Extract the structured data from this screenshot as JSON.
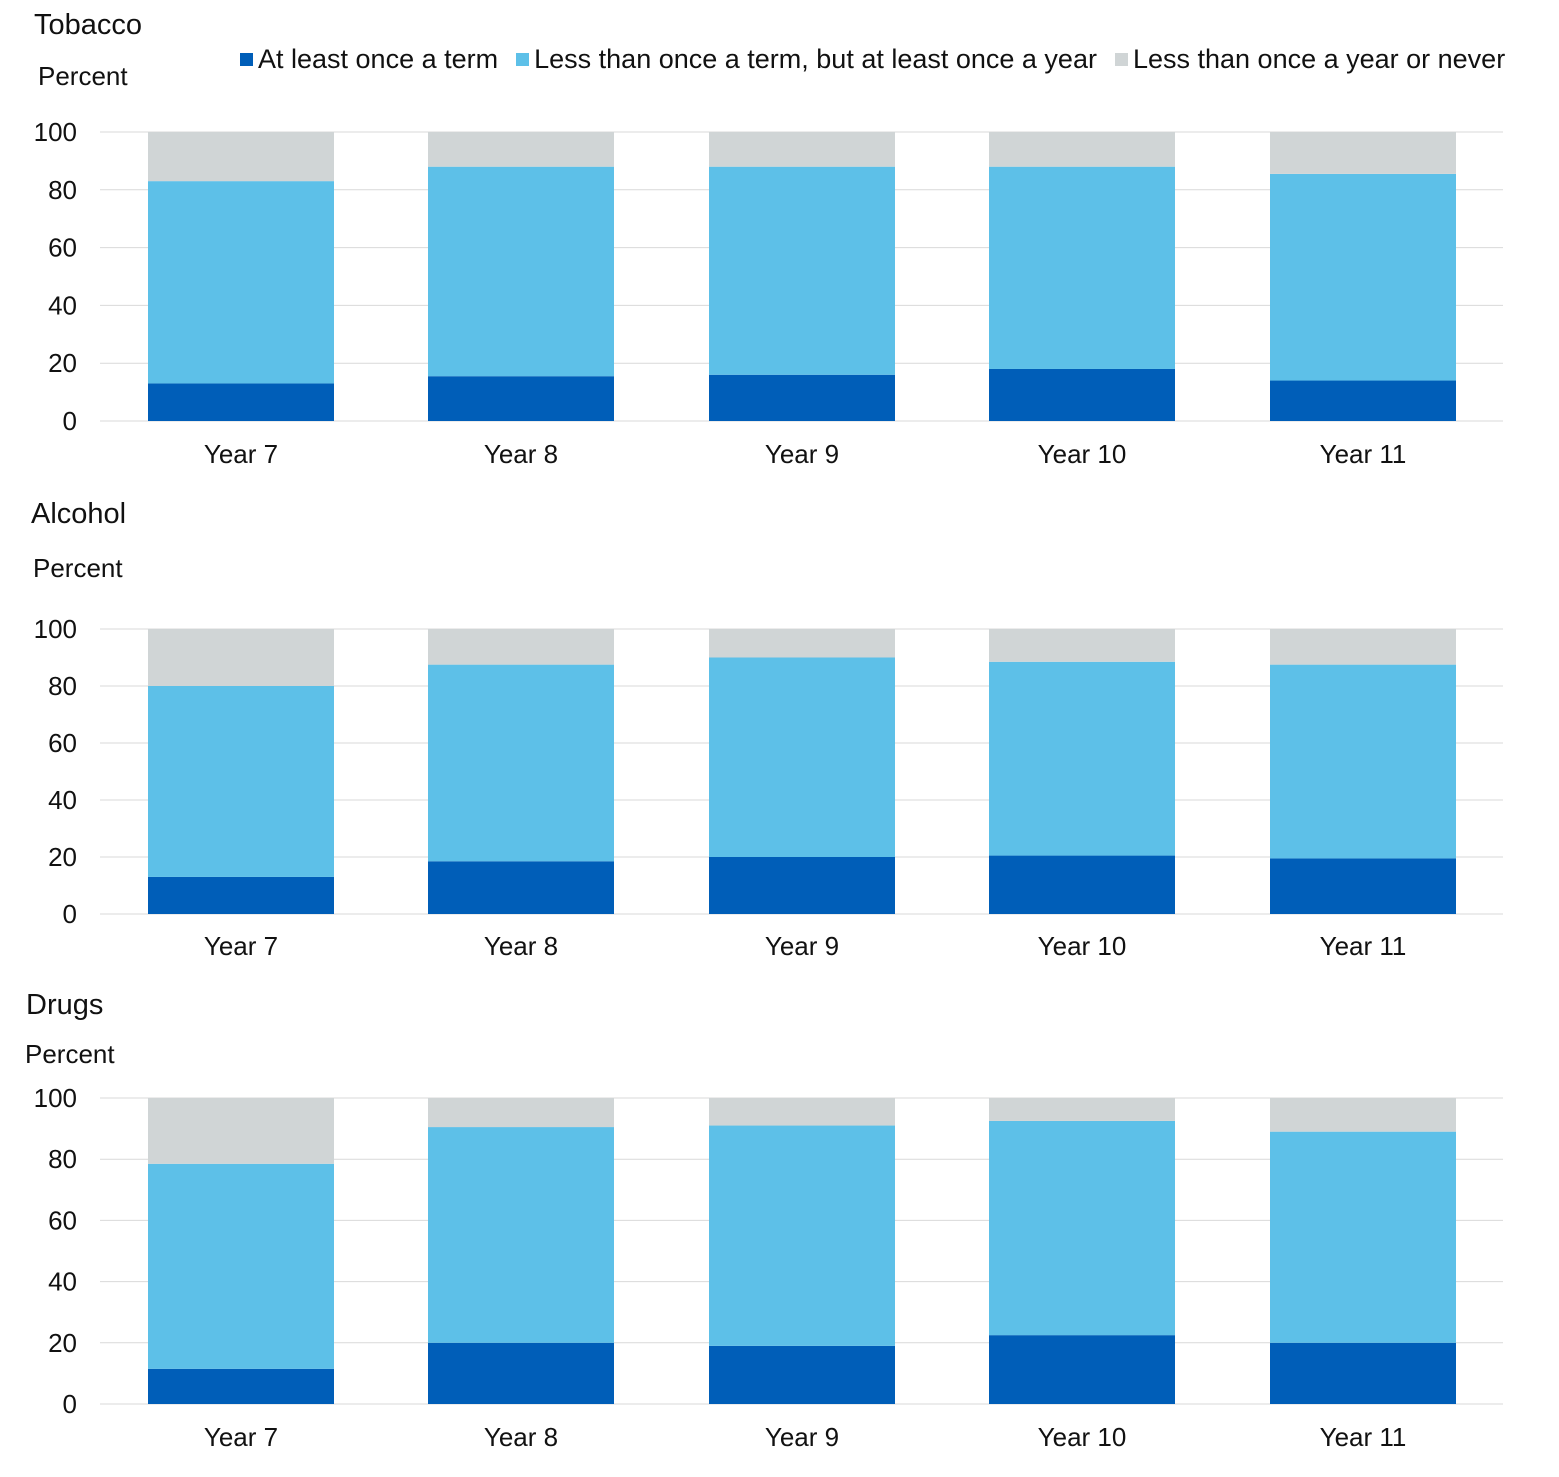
{
  "legend": {
    "items": [
      {
        "label": "At least once a term",
        "color": "#005EB8"
      },
      {
        "label": "Less than once a term, but at least once a year",
        "color": "#5DC0E8"
      },
      {
        "label": "Less than once a year or never",
        "color": "#D0D5D6"
      }
    ]
  },
  "chart_data": [
    {
      "type": "bar",
      "stacked": true,
      "title": "Tobacco",
      "ylabel": "Percent",
      "ylim": [
        0,
        100
      ],
      "yticks": [
        0,
        20,
        40,
        60,
        80,
        100
      ],
      "grid": true,
      "categories": [
        "Year 7",
        "Year 8",
        "Year 9",
        "Year 10",
        "Year 11"
      ],
      "series": [
        {
          "name": "At least once a term",
          "color": "#005EB8",
          "values": [
            13,
            15.5,
            16,
            18,
            14
          ]
        },
        {
          "name": "Less than once a term, but at least once a year",
          "color": "#5DC0E8",
          "values": [
            70,
            72.5,
            72,
            70,
            71.5
          ]
        },
        {
          "name": "Less than once a year or never",
          "color": "#D0D5D6",
          "values": [
            17,
            12,
            12,
            12,
            14.5
          ]
        }
      ]
    },
    {
      "type": "bar",
      "stacked": true,
      "title": "Alcohol",
      "ylabel": "Percent",
      "ylim": [
        0,
        100
      ],
      "yticks": [
        0,
        20,
        40,
        60,
        80,
        100
      ],
      "grid": true,
      "categories": [
        "Year 7",
        "Year 8",
        "Year 9",
        "Year 10",
        "Year 11"
      ],
      "series": [
        {
          "name": "At least once a term",
          "color": "#005EB8",
          "values": [
            13,
            18.5,
            20,
            20.5,
            19.5
          ]
        },
        {
          "name": "Less than once a term, but at least once a year",
          "color": "#5DC0E8",
          "values": [
            67,
            69,
            70,
            68,
            68
          ]
        },
        {
          "name": "Less than once a year or never",
          "color": "#D0D5D6",
          "values": [
            20,
            12.5,
            10,
            11.5,
            12.5
          ]
        }
      ]
    },
    {
      "type": "bar",
      "stacked": true,
      "title": "Drugs",
      "ylabel": "Percent",
      "ylim": [
        0,
        100
      ],
      "yticks": [
        0,
        20,
        40,
        60,
        80,
        100
      ],
      "grid": true,
      "categories": [
        "Year 7",
        "Year 8",
        "Year 9",
        "Year 10",
        "Year 11"
      ],
      "series": [
        {
          "name": "At least once a term",
          "color": "#005EB8",
          "values": [
            11.5,
            20,
            19,
            22.5,
            20
          ]
        },
        {
          "name": "Less than once a term, but at least once a year",
          "color": "#5DC0E8",
          "values": [
            67,
            70.5,
            72,
            70,
            69
          ]
        },
        {
          "name": "Less than once a year or never",
          "color": "#D0D5D6",
          "values": [
            21.5,
            9.5,
            9,
            7.5,
            11
          ]
        }
      ]
    }
  ]
}
